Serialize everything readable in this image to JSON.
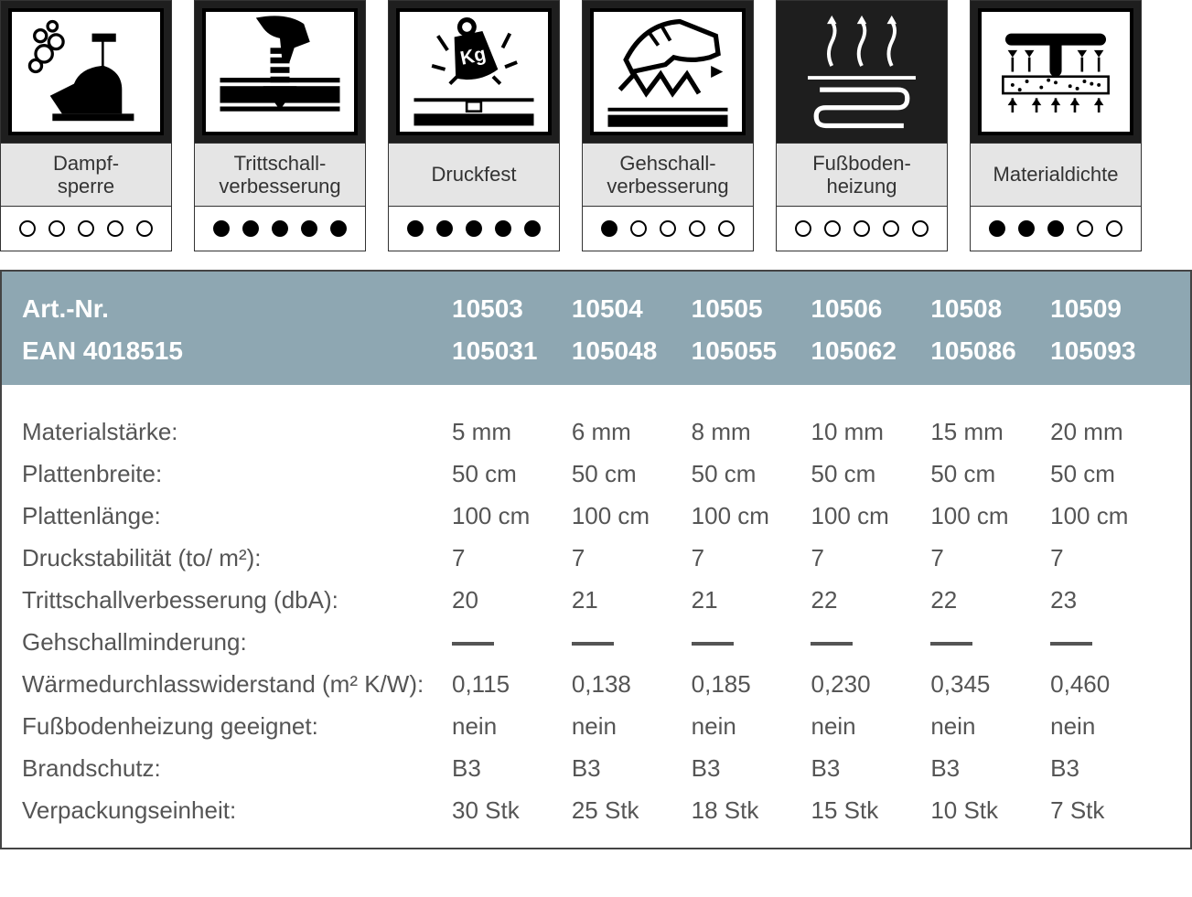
{
  "colors": {
    "card_bg_dark": "#1e1e1e",
    "card_label_bg": "#e5e5e5",
    "border": "#333333",
    "table_header_bg": "#8ea7b2",
    "table_header_text": "#ffffff",
    "table_body_text": "#555555",
    "dot_border": "#000000",
    "dot_fill": "#000000"
  },
  "cards": [
    {
      "name": "dampfsperre",
      "label": "Dampf-\nsperre",
      "rating": 0,
      "max": 5
    },
    {
      "name": "trittschall",
      "label": "Trittschall-\nverbesserung",
      "rating": 5,
      "max": 5
    },
    {
      "name": "druckfest",
      "label": "Druckfest",
      "rating": 5,
      "max": 5
    },
    {
      "name": "gehschall",
      "label": "Gehschall-\nverbesserung",
      "rating": 1,
      "max": 5
    },
    {
      "name": "fussbodenheizung",
      "label": "Fußboden-\nheizung",
      "rating": 0,
      "max": 5
    },
    {
      "name": "materialdichte",
      "label": "Materialdichte",
      "rating": 3,
      "max": 5
    }
  ],
  "table": {
    "header": [
      {
        "label": "Art.-Nr.",
        "values": [
          "10503",
          "10504",
          "10505",
          "10506",
          "10508",
          "10509"
        ]
      },
      {
        "label": "EAN  4018515",
        "values": [
          "105031",
          "105048",
          "105055",
          "105062",
          "105086",
          "105093"
        ]
      }
    ],
    "body": [
      {
        "label": "Materialstärke:",
        "values": [
          "5 mm",
          "6 mm",
          "8 mm",
          "10 mm",
          "15 mm",
          "20 mm"
        ]
      },
      {
        "label": "Plattenbreite:",
        "values": [
          "50 cm",
          "50 cm",
          "50 cm",
          "50 cm",
          "50 cm",
          "50 cm"
        ]
      },
      {
        "label": "Plattenlänge:",
        "values": [
          "100 cm",
          "100 cm",
          "100 cm",
          "100 cm",
          "100 cm",
          "100 cm"
        ]
      },
      {
        "label": "Druckstabilität (to/ m²):",
        "values": [
          "7",
          "7",
          "7",
          "7",
          "7",
          "7"
        ]
      },
      {
        "label": "Trittschallverbesserung (dbA):",
        "values": [
          "20",
          "21",
          "21",
          "22",
          "22",
          "23"
        ]
      },
      {
        "label": "Gehschallminderung:",
        "values": [
          "—",
          "—",
          "—",
          "—",
          "—",
          "—"
        ],
        "dash": true
      },
      {
        "label": "Wärmedurchlasswiderstand (m² K/W):",
        "values": [
          "0,115",
          "0,138",
          "0,185",
          "0,230",
          "0,345",
          "0,460"
        ]
      },
      {
        "label": "Fußbodenheizung geeignet:",
        "values": [
          "nein",
          "nein",
          "nein",
          "nein",
          "nein",
          "nein"
        ]
      },
      {
        "label": "Brandschutz:",
        "values": [
          "B3",
          "B3",
          "B3",
          "B3",
          "B3",
          "B3"
        ]
      },
      {
        "label": "Verpackungseinheit:",
        "values": [
          "30 Stk",
          "25 Stk",
          "18 Stk",
          "15 Stk",
          "10 Stk",
          "7 Stk"
        ]
      }
    ]
  }
}
